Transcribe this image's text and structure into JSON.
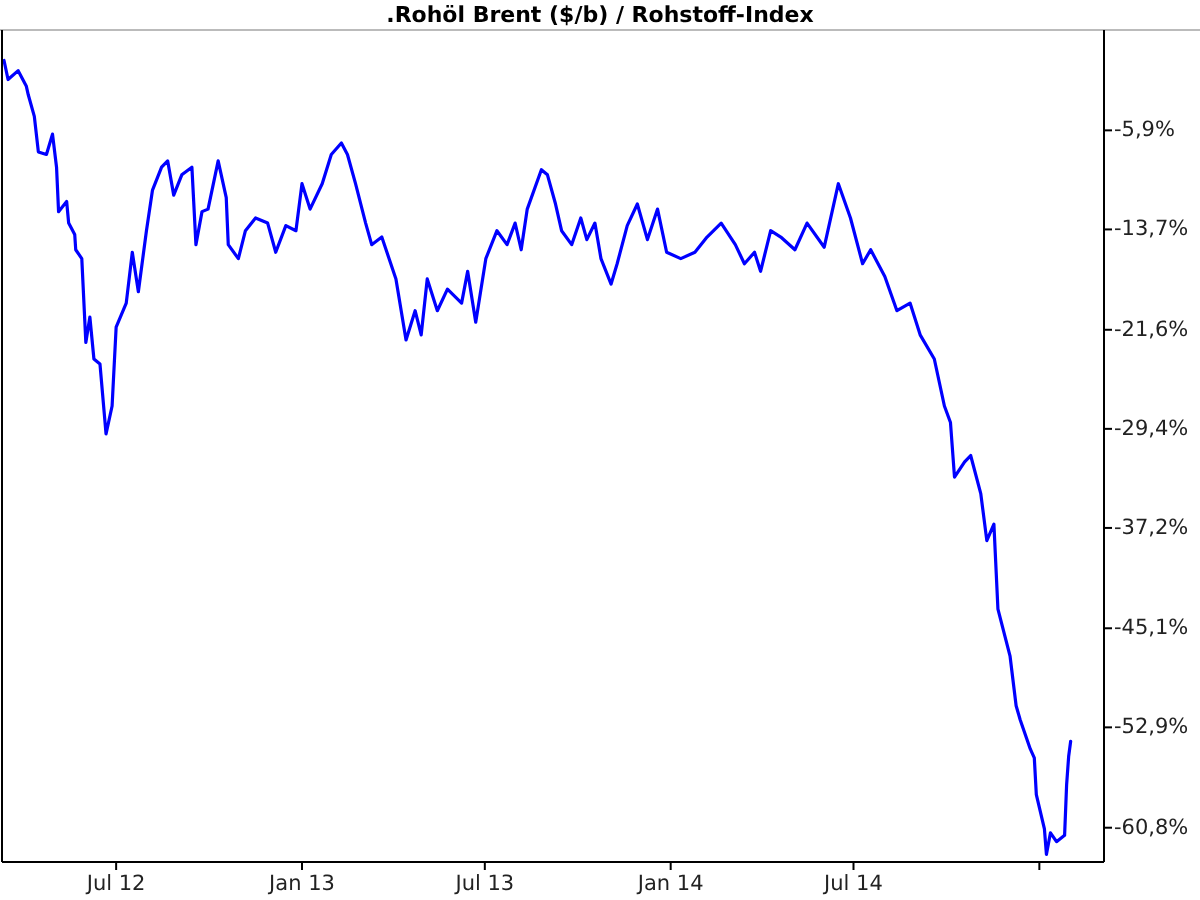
{
  "chart_data": {
    "type": "line",
    "title": ".Rohöl Brent ($/b) / Rohstoff-Index",
    "x": [
      "2012-03-12",
      "2012-03-16",
      "2012-03-26",
      "2012-04-03",
      "2012-04-05",
      "2012-04-11",
      "2012-04-15",
      "2012-04-23",
      "2012-04-29",
      "2012-05-03",
      "2012-05-05",
      "2012-05-13",
      "2012-05-15",
      "2012-05-21",
      "2012-05-22",
      "2012-05-28",
      "2012-06-01",
      "2012-06-05",
      "2012-06-09",
      "2012-06-15",
      "2012-06-21",
      "2012-06-27",
      "2012-07-01",
      "2012-07-11",
      "2012-07-17",
      "2012-07-23",
      "2012-07-31",
      "2012-08-06",
      "2012-08-15",
      "2012-08-21",
      "2012-08-27",
      "2012-09-04",
      "2012-09-14",
      "2012-09-18",
      "2012-09-24",
      "2012-09-30",
      "2012-10-10",
      "2012-10-18",
      "2012-10-20",
      "2012-10-30",
      "2012-11-06",
      "2012-11-16",
      "2012-11-28",
      "2012-12-06",
      "2012-12-16",
      "2012-12-26",
      "2013-01-01",
      "2013-01-09",
      "2013-01-21",
      "2013-01-30",
      "2013-02-09",
      "2013-02-15",
      "2013-02-23",
      "2013-03-05",
      "2013-03-11",
      "2013-03-21",
      "2013-04-04",
      "2013-04-14",
      "2013-04-23",
      "2013-04-29",
      "2013-05-05",
      "2013-05-15",
      "2013-05-25",
      "2013-06-08",
      "2013-06-14",
      "2013-06-22",
      "2013-07-02",
      "2013-07-13",
      "2013-07-23",
      "2013-07-31",
      "2013-08-06",
      "2013-08-12",
      "2013-08-26",
      "2013-09-01",
      "2013-09-09",
      "2013-09-15",
      "2013-09-25",
      "2013-10-04",
      "2013-10-10",
      "2013-10-18",
      "2013-10-24",
      "2013-11-03",
      "2013-11-09",
      "2013-11-19",
      "2013-11-29",
      "2013-12-09",
      "2013-12-19",
      "2013-12-28",
      "2014-01-11",
      "2014-01-25",
      "2014-02-06",
      "2014-02-20",
      "2014-03-06",
      "2014-03-15",
      "2014-03-25",
      "2014-03-31",
      "2014-04-10",
      "2014-04-20",
      "2014-05-04",
      "2014-05-16",
      "2014-06-02",
      "2014-06-16",
      "2014-06-28",
      "2014-07-10",
      "2014-07-18",
      "2014-08-01",
      "2014-08-13",
      "2014-08-26",
      "2014-09-05",
      "2014-09-19",
      "2014-09-29",
      "2014-10-05",
      "2014-10-09",
      "2014-10-19",
      "2014-10-25",
      "2014-11-04",
      "2014-11-10",
      "2014-11-17",
      "2014-11-21",
      "2014-12-03",
      "2014-12-07",
      "2014-12-09",
      "2014-12-13",
      "2014-12-23",
      "2014-12-27",
      "2014-12-29",
      "2015-01-06",
      "2015-01-08",
      "2015-01-12",
      "2015-01-18",
      "2015-01-26",
      "2015-01-28",
      "2015-01-30",
      "2015-02-01"
    ],
    "series": [
      {
        "color": "#0000ff",
        "values": [
          -0.4,
          -1.9,
          -1.2,
          -2.4,
          -3.1,
          -4.8,
          -7.6,
          -7.8,
          -6.2,
          -8.8,
          -12.3,
          -11.5,
          -13.2,
          -14.1,
          -15.3,
          -16.0,
          -22.6,
          -20.6,
          -23.9,
          -24.3,
          -29.8,
          -27.6,
          -21.4,
          -19.5,
          -15.5,
          -18.6,
          -13.8,
          -10.6,
          -8.8,
          -8.3,
          -11.0,
          -9.4,
          -8.8,
          -14.9,
          -12.3,
          -12.1,
          -8.3,
          -11.2,
          -14.9,
          -16.0,
          -13.8,
          -12.8,
          -13.2,
          -15.5,
          -13.4,
          -13.8,
          -10.1,
          -12.1,
          -10.1,
          -7.8,
          -6.9,
          -7.8,
          -10.1,
          -13.2,
          -14.9,
          -14.3,
          -17.6,
          -22.4,
          -20.1,
          -22.0,
          -17.6,
          -20.1,
          -18.4,
          -19.5,
          -17.0,
          -21.0,
          -16.0,
          -13.8,
          -14.9,
          -13.2,
          -15.3,
          -12.1,
          -9.0,
          -9.4,
          -11.7,
          -13.8,
          -14.9,
          -12.8,
          -14.5,
          -13.2,
          -16.0,
          -18.0,
          -16.4,
          -13.4,
          -11.7,
          -14.5,
          -12.1,
          -15.5,
          -16.0,
          -15.5,
          -14.3,
          -13.2,
          -14.9,
          -16.4,
          -15.5,
          -17.0,
          -13.8,
          -14.3,
          -15.3,
          -13.2,
          -15.1,
          -10.1,
          -12.8,
          -16.4,
          -15.3,
          -17.4,
          -20.1,
          -19.5,
          -22.0,
          -23.9,
          -27.6,
          -28.9,
          -33.2,
          -32.0,
          -31.5,
          -34.5,
          -38.2,
          -36.9,
          -43.6,
          -47.3,
          -49.9,
          -51.2,
          -52.3,
          -54.6,
          -55.3,
          -58.2,
          -60.9,
          -62.9,
          -61.2,
          -61.9,
          -61.4,
          -57.4,
          -55.2,
          -54.0
        ]
      }
    ],
    "xlim": [
      "2012-03-10",
      "2015-03-06"
    ],
    "xticks": [
      {
        "value": "2012-07-01",
        "label": "Jul 12"
      },
      {
        "value": "2013-01-01",
        "label": "Jan 13"
      },
      {
        "value": "2013-07-01",
        "label": "Jul 13"
      },
      {
        "value": "2014-01-01",
        "label": "Jan 14"
      },
      {
        "value": "2014-07-01",
        "label": "Jul 14"
      },
      {
        "value": "2015-01-01",
        "label": null
      }
    ],
    "ylim": [
      -63.5,
      2
    ],
    "yticks": [
      {
        "value": -5.9,
        "label": "-5,9%"
      },
      {
        "value": -13.7,
        "label": "-13,7%"
      },
      {
        "value": -21.6,
        "label": "-21,6%"
      },
      {
        "value": -29.4,
        "label": "-29,4%"
      },
      {
        "value": -37.2,
        "label": "-37,2%"
      },
      {
        "value": -45.1,
        "label": "-45,1%"
      },
      {
        "value": -52.9,
        "label": "-52,9%"
      },
      {
        "value": -60.8,
        "label": "-60,8%"
      }
    ],
    "grid": false
  }
}
